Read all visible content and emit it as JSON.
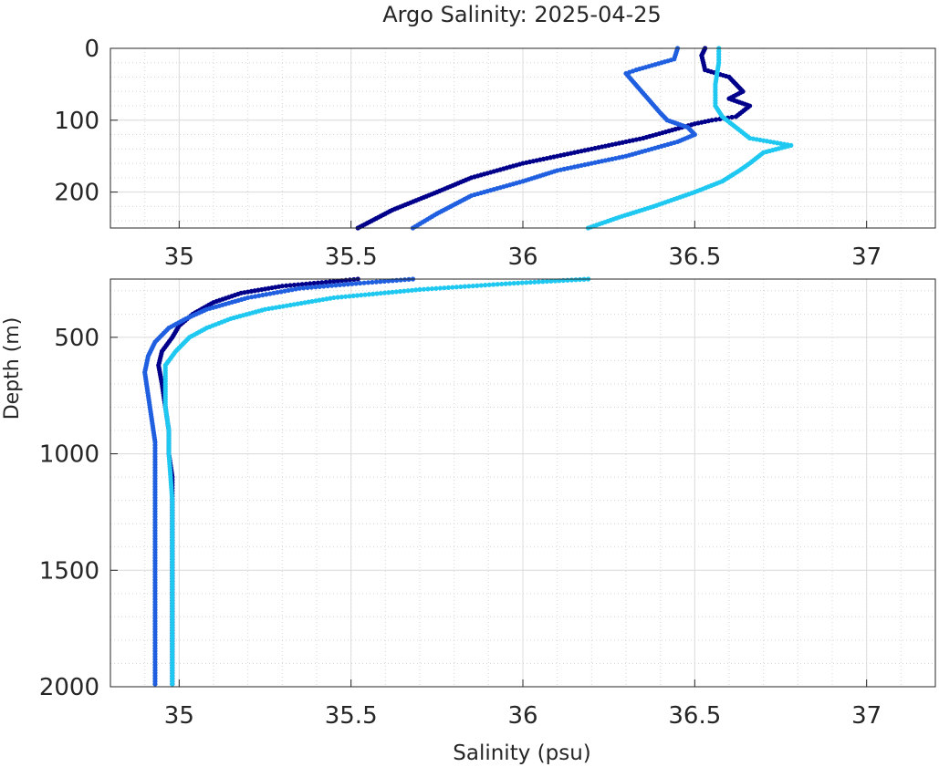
{
  "chart_data": {
    "type": "scatter",
    "title": "Argo Salinity: 2025-04-25",
    "xlabel": "Salinity (psu)",
    "ylabel": "Depth (m)",
    "xlim": [
      34.8,
      37.2
    ],
    "grid": true,
    "minor_grid": true,
    "colors": {
      "dark": "#00008b",
      "mid": "#1f5fe0",
      "light": "#1ec8f0"
    },
    "panels": [
      {
        "name": "upper",
        "ylim": [
          0,
          250
        ],
        "yreverse": true,
        "xticks": [
          35,
          35.5,
          36,
          36.5,
          37
        ],
        "xtick_labels": [
          "35",
          "35.5",
          "36",
          "36.5",
          "37"
        ],
        "yticks": [
          0,
          100,
          200
        ],
        "ytick_labels": [
          "0",
          "100",
          "200"
        ]
      },
      {
        "name": "lower",
        "ylim": [
          250,
          2000
        ],
        "yreverse": true,
        "xticks": [
          35,
          35.5,
          36,
          36.5,
          37
        ],
        "xtick_labels": [
          "35",
          "35.5",
          "36",
          "36.5",
          "37"
        ],
        "yticks": [
          500,
          1000,
          1500,
          2000
        ],
        "ytick_labels": [
          "500",
          "1000",
          "1500",
          "2000"
        ]
      }
    ],
    "series": [
      {
        "color": "dark",
        "points": [
          [
            36.53,
            0
          ],
          [
            36.52,
            10
          ],
          [
            36.53,
            30
          ],
          [
            36.6,
            40
          ],
          [
            36.62,
            50
          ],
          [
            36.64,
            60
          ],
          [
            36.6,
            70
          ],
          [
            36.66,
            80
          ],
          [
            36.62,
            95
          ],
          [
            36.55,
            100
          ],
          [
            36.5,
            105
          ],
          [
            36.35,
            125
          ],
          [
            36.2,
            140
          ],
          [
            36.0,
            160
          ],
          [
            35.85,
            180
          ],
          [
            35.75,
            200
          ],
          [
            35.62,
            225
          ],
          [
            35.52,
            250
          ],
          [
            35.45,
            260
          ],
          [
            35.3,
            280
          ],
          [
            35.18,
            310
          ],
          [
            35.1,
            350
          ],
          [
            35.04,
            400
          ],
          [
            35.0,
            450
          ],
          [
            34.98,
            500
          ],
          [
            34.95,
            560
          ],
          [
            34.94,
            620
          ],
          [
            34.95,
            700
          ],
          [
            34.96,
            800
          ],
          [
            34.97,
            900
          ],
          [
            34.97,
            1000
          ],
          [
            34.98,
            1100
          ],
          [
            34.98,
            1300
          ],
          [
            34.98,
            1500
          ],
          [
            34.98,
            1700
          ],
          [
            34.98,
            2000
          ]
        ]
      },
      {
        "color": "mid",
        "points": [
          [
            36.45,
            0
          ],
          [
            36.44,
            15
          ],
          [
            36.33,
            30
          ],
          [
            36.3,
            35
          ],
          [
            36.4,
            90
          ],
          [
            36.42,
            100
          ],
          [
            36.48,
            110
          ],
          [
            36.5,
            120
          ],
          [
            36.45,
            130
          ],
          [
            36.3,
            150
          ],
          [
            36.1,
            170
          ],
          [
            36.0,
            185
          ],
          [
            35.85,
            205
          ],
          [
            35.75,
            230
          ],
          [
            35.68,
            250
          ],
          [
            35.55,
            265
          ],
          [
            35.35,
            290
          ],
          [
            35.2,
            330
          ],
          [
            35.08,
            380
          ],
          [
            35.02,
            420
          ],
          [
            34.97,
            460
          ],
          [
            34.93,
            520
          ],
          [
            34.91,
            580
          ],
          [
            34.9,
            650
          ],
          [
            34.91,
            750
          ],
          [
            34.92,
            850
          ],
          [
            34.93,
            950
          ],
          [
            34.93,
            1000
          ],
          [
            34.93,
            1200
          ],
          [
            34.93,
            1400
          ],
          [
            34.93,
            1600
          ],
          [
            34.93,
            1800
          ],
          [
            34.93,
            2000
          ]
        ]
      },
      {
        "color": "light",
        "points": [
          [
            36.57,
            0
          ],
          [
            36.57,
            20
          ],
          [
            36.56,
            50
          ],
          [
            36.56,
            80
          ],
          [
            36.58,
            95
          ],
          [
            36.62,
            110
          ],
          [
            36.66,
            125
          ],
          [
            36.72,
            130
          ],
          [
            36.78,
            135
          ],
          [
            36.7,
            145
          ],
          [
            36.66,
            160
          ],
          [
            36.63,
            170
          ],
          [
            36.58,
            185
          ],
          [
            36.5,
            200
          ],
          [
            36.38,
            220
          ],
          [
            36.28,
            235
          ],
          [
            36.19,
            250
          ],
          [
            35.95,
            270
          ],
          [
            35.7,
            295
          ],
          [
            35.45,
            330
          ],
          [
            35.25,
            380
          ],
          [
            35.15,
            420
          ],
          [
            35.08,
            460
          ],
          [
            35.03,
            500
          ],
          [
            34.99,
            560
          ],
          [
            34.96,
            620
          ],
          [
            34.96,
            700
          ],
          [
            34.96,
            800
          ],
          [
            34.97,
            900
          ],
          [
            34.97,
            1000
          ],
          [
            34.98,
            1200
          ],
          [
            34.98,
            1400
          ],
          [
            34.98,
            1600
          ],
          [
            34.98,
            1800
          ],
          [
            34.98,
            2000
          ]
        ]
      }
    ]
  }
}
